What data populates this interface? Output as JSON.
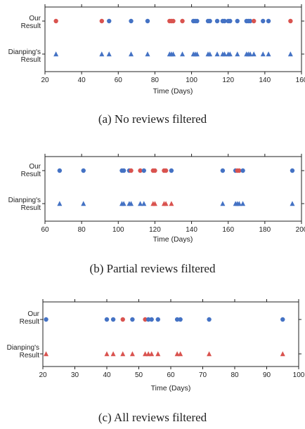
{
  "colors": {
    "blue": "#4472c4",
    "red": "#d9534f"
  },
  "chart_data": [
    {
      "type": "scatter",
      "caption": "(a) No reviews filtered",
      "xlabel": "Time (Days)",
      "xlim": [
        20,
        160
      ],
      "xticks": [
        20,
        40,
        60,
        80,
        100,
        120,
        140,
        160
      ],
      "rows": [
        "Our Result",
        "Dianping's Result"
      ],
      "series": [
        {
          "name": "Our Result",
          "marker": "circle",
          "points": [
            {
              "x": 26,
              "c": "red"
            },
            {
              "x": 51,
              "c": "red"
            },
            {
              "x": 55,
              "c": "blue"
            },
            {
              "x": 67,
              "c": "blue"
            },
            {
              "x": 76,
              "c": "blue"
            },
            {
              "x": 88,
              "c": "red"
            },
            {
              "x": 89,
              "c": "red"
            },
            {
              "x": 90,
              "c": "red"
            },
            {
              "x": 95,
              "c": "red"
            },
            {
              "x": 101,
              "c": "blue"
            },
            {
              "x": 102,
              "c": "blue"
            },
            {
              "x": 103,
              "c": "blue"
            },
            {
              "x": 109,
              "c": "blue"
            },
            {
              "x": 110,
              "c": "blue"
            },
            {
              "x": 114,
              "c": "blue"
            },
            {
              "x": 117,
              "c": "blue"
            },
            {
              "x": 118,
              "c": "blue"
            },
            {
              "x": 120,
              "c": "blue"
            },
            {
              "x": 121,
              "c": "blue"
            },
            {
              "x": 125,
              "c": "blue"
            },
            {
              "x": 130,
              "c": "blue"
            },
            {
              "x": 131,
              "c": "blue"
            },
            {
              "x": 132,
              "c": "blue"
            },
            {
              "x": 134,
              "c": "red"
            },
            {
              "x": 139,
              "c": "blue"
            },
            {
              "x": 142,
              "c": "blue"
            },
            {
              "x": 154,
              "c": "red"
            }
          ]
        },
        {
          "name": "Dianping's Result",
          "marker": "triangle",
          "points": [
            {
              "x": 26,
              "c": "blue"
            },
            {
              "x": 51,
              "c": "blue"
            },
            {
              "x": 55,
              "c": "blue"
            },
            {
              "x": 67,
              "c": "blue"
            },
            {
              "x": 76,
              "c": "blue"
            },
            {
              "x": 88,
              "c": "blue"
            },
            {
              "x": 89,
              "c": "blue"
            },
            {
              "x": 90,
              "c": "blue"
            },
            {
              "x": 95,
              "c": "blue"
            },
            {
              "x": 101,
              "c": "blue"
            },
            {
              "x": 102,
              "c": "blue"
            },
            {
              "x": 103,
              "c": "blue"
            },
            {
              "x": 109,
              "c": "blue"
            },
            {
              "x": 110,
              "c": "blue"
            },
            {
              "x": 114,
              "c": "blue"
            },
            {
              "x": 117,
              "c": "blue"
            },
            {
              "x": 118,
              "c": "blue"
            },
            {
              "x": 120,
              "c": "blue"
            },
            {
              "x": 121,
              "c": "blue"
            },
            {
              "x": 125,
              "c": "blue"
            },
            {
              "x": 130,
              "c": "blue"
            },
            {
              "x": 131,
              "c": "blue"
            },
            {
              "x": 132,
              "c": "blue"
            },
            {
              "x": 134,
              "c": "blue"
            },
            {
              "x": 139,
              "c": "blue"
            },
            {
              "x": 142,
              "c": "blue"
            },
            {
              "x": 154,
              "c": "blue"
            }
          ]
        }
      ]
    },
    {
      "type": "scatter",
      "caption": "(b) Partial reviews filtered",
      "xlabel": "Time (Days)",
      "xlim": [
        60,
        200
      ],
      "xticks": [
        60,
        80,
        100,
        120,
        140,
        160,
        180,
        200
      ],
      "rows": [
        "Our Result",
        "Dianping's Result"
      ],
      "series": [
        {
          "name": "Our Result",
          "marker": "circle",
          "points": [
            {
              "x": 68,
              "c": "blue"
            },
            {
              "x": 81,
              "c": "blue"
            },
            {
              "x": 102,
              "c": "blue"
            },
            {
              "x": 103,
              "c": "blue"
            },
            {
              "x": 106,
              "c": "blue"
            },
            {
              "x": 107,
              "c": "red"
            },
            {
              "x": 112,
              "c": "red"
            },
            {
              "x": 114,
              "c": "blue"
            },
            {
              "x": 119,
              "c": "red"
            },
            {
              "x": 120,
              "c": "red"
            },
            {
              "x": 125,
              "c": "red"
            },
            {
              "x": 126,
              "c": "red"
            },
            {
              "x": 129,
              "c": "blue"
            },
            {
              "x": 157,
              "c": "blue"
            },
            {
              "x": 164,
              "c": "blue"
            },
            {
              "x": 165,
              "c": "red"
            },
            {
              "x": 166,
              "c": "red"
            },
            {
              "x": 168,
              "c": "blue"
            },
            {
              "x": 195,
              "c": "blue"
            }
          ]
        },
        {
          "name": "Dianping's Result",
          "marker": "triangle",
          "points": [
            {
              "x": 68,
              "c": "blue"
            },
            {
              "x": 81,
              "c": "blue"
            },
            {
              "x": 102,
              "c": "blue"
            },
            {
              "x": 103,
              "c": "blue"
            },
            {
              "x": 106,
              "c": "blue"
            },
            {
              "x": 107,
              "c": "blue"
            },
            {
              "x": 112,
              "c": "blue"
            },
            {
              "x": 114,
              "c": "blue"
            },
            {
              "x": 119,
              "c": "red"
            },
            {
              "x": 120,
              "c": "red"
            },
            {
              "x": 125,
              "c": "red"
            },
            {
              "x": 126,
              "c": "red"
            },
            {
              "x": 129,
              "c": "red"
            },
            {
              "x": 157,
              "c": "blue"
            },
            {
              "x": 164,
              "c": "blue"
            },
            {
              "x": 165,
              "c": "blue"
            },
            {
              "x": 166,
              "c": "blue"
            },
            {
              "x": 168,
              "c": "blue"
            },
            {
              "x": 195,
              "c": "blue"
            }
          ]
        }
      ]
    },
    {
      "type": "scatter",
      "caption": "(c) All reviews filtered",
      "xlabel": "Time (Days)",
      "xlim": [
        20,
        100
      ],
      "xticks": [
        20,
        30,
        40,
        50,
        60,
        70,
        80,
        90,
        100
      ],
      "rows": [
        "Our Result",
        "Dianping's Result"
      ],
      "series": [
        {
          "name": "Our Result",
          "marker": "circle",
          "points": [
            {
              "x": 21,
              "c": "blue"
            },
            {
              "x": 40,
              "c": "blue"
            },
            {
              "x": 42,
              "c": "blue"
            },
            {
              "x": 45,
              "c": "red"
            },
            {
              "x": 48,
              "c": "blue"
            },
            {
              "x": 52,
              "c": "red"
            },
            {
              "x": 53,
              "c": "blue"
            },
            {
              "x": 54,
              "c": "blue"
            },
            {
              "x": 56,
              "c": "blue"
            },
            {
              "x": 62,
              "c": "blue"
            },
            {
              "x": 63,
              "c": "blue"
            },
            {
              "x": 72,
              "c": "blue"
            },
            {
              "x": 95,
              "c": "blue"
            }
          ]
        },
        {
          "name": "Dianping's Result",
          "marker": "triangle",
          "points": [
            {
              "x": 21,
              "c": "red"
            },
            {
              "x": 40,
              "c": "red"
            },
            {
              "x": 42,
              "c": "red"
            },
            {
              "x": 45,
              "c": "red"
            },
            {
              "x": 48,
              "c": "red"
            },
            {
              "x": 52,
              "c": "red"
            },
            {
              "x": 53,
              "c": "red"
            },
            {
              "x": 54,
              "c": "red"
            },
            {
              "x": 56,
              "c": "red"
            },
            {
              "x": 62,
              "c": "red"
            },
            {
              "x": 63,
              "c": "red"
            },
            {
              "x": 72,
              "c": "red"
            },
            {
              "x": 95,
              "c": "red"
            }
          ]
        }
      ]
    }
  ]
}
